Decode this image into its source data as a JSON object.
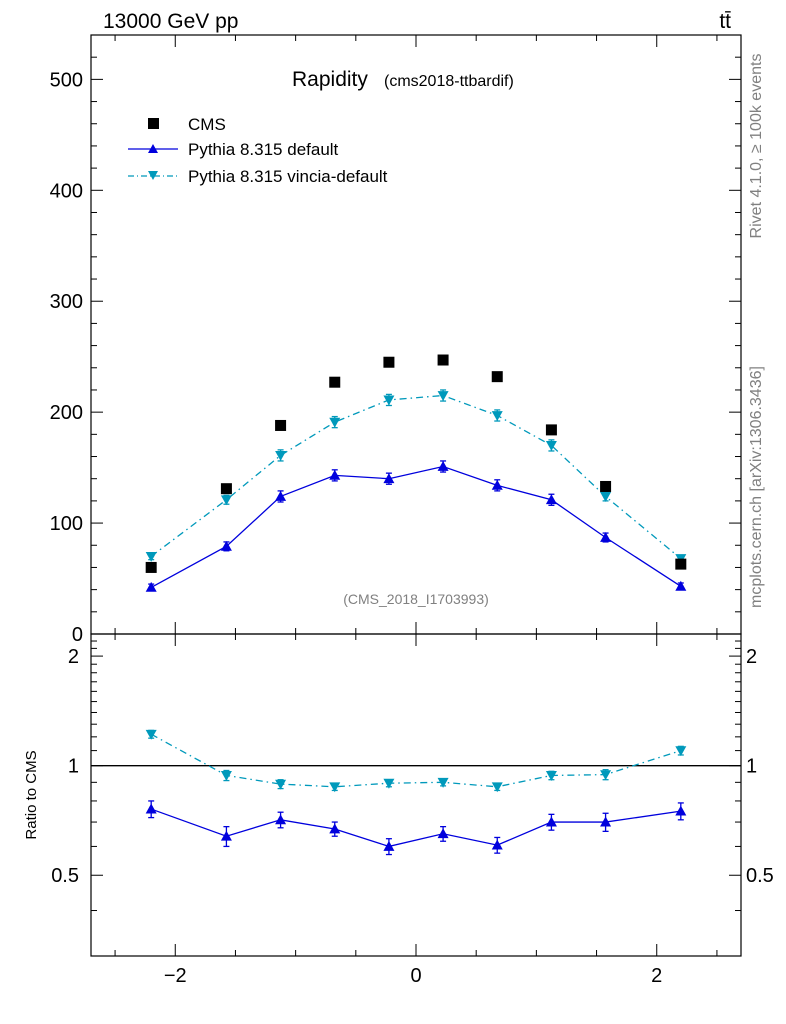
{
  "header": {
    "energy_label": "13000 GeV pp",
    "process_label": "tt̄",
    "side_label_top": "Rivet 4.1.0, ≥ 100k events",
    "side_label_bottom": "mcplots.cern.ch [arXiv:1306.3436]",
    "analysis_id": "(CMS_2018_I1703993)"
  },
  "chart_data": [
    {
      "type": "scatter",
      "title": "Rapidity",
      "subtitle": "(cms2018-ttbardif)",
      "xlabel": "",
      "ylabel": "",
      "xlim": [
        -2.7,
        2.7
      ],
      "ylim": [
        0,
        540
      ],
      "yticks": [
        0,
        100,
        200,
        300,
        400,
        500
      ],
      "ytick_labels": [
        "0",
        "100",
        "200",
        "300",
        "400",
        "500"
      ],
      "legend_position": "top-left",
      "x": [
        -2.2,
        -1.575,
        -1.125,
        -0.675,
        -0.225,
        0.225,
        0.675,
        1.125,
        1.575,
        2.2
      ],
      "series": [
        {
          "name": "CMS",
          "color": "#000000",
          "marker": "square",
          "values": [
            60,
            131,
            188,
            227,
            245,
            247,
            232,
            184,
            133,
            63
          ]
        },
        {
          "name": "Pythia 8.315 default",
          "color": "#0000dd",
          "marker": "triangle-up",
          "line": "solid",
          "values": [
            42,
            79,
            124,
            143,
            140,
            151,
            134,
            121,
            87,
            43
          ],
          "errors": [
            3,
            4,
            5,
            5,
            5,
            5,
            5,
            5,
            4,
            3
          ]
        },
        {
          "name": "Pythia 8.315 vincia-default",
          "color": "#0099bb",
          "marker": "triangle-down",
          "line": "dashdot",
          "values": [
            70,
            121,
            161,
            191,
            211,
            215,
            197,
            170,
            124,
            68
          ],
          "errors": [
            3,
            4,
            5,
            5,
            5,
            5,
            5,
            5,
            4,
            3
          ]
        }
      ]
    },
    {
      "type": "line",
      "title": "",
      "xlabel": "",
      "ylabel": "Ratio to CMS",
      "xlim": [
        -2.7,
        2.7
      ],
      "ylim": [
        0.3,
        2.3
      ],
      "xticks": [
        -2,
        0,
        2
      ],
      "xtick_labels": [
        "−2",
        "0",
        "2"
      ],
      "yticks": [
        0.5,
        1,
        2
      ],
      "ytick_labels": [
        "0.5",
        "1",
        "2"
      ],
      "reference_line": 1,
      "x": [
        -2.2,
        -1.575,
        -1.125,
        -0.675,
        -0.225,
        0.225,
        0.675,
        1.125,
        1.575,
        2.2
      ],
      "series": [
        {
          "name": "Pythia 8.315 default",
          "color": "#0000dd",
          "marker": "triangle-up",
          "line": "solid",
          "values": [
            0.76,
            0.64,
            0.71,
            0.67,
            0.6,
            0.65,
            0.605,
            0.7,
            0.7,
            0.75
          ],
          "errors": [
            0.04,
            0.04,
            0.035,
            0.03,
            0.03,
            0.03,
            0.03,
            0.035,
            0.04,
            0.04
          ]
        },
        {
          "name": "Pythia 8.315 vincia-default",
          "color": "#0099bb",
          "marker": "triangle-down",
          "line": "dashdot",
          "values": [
            1.22,
            0.94,
            0.89,
            0.875,
            0.895,
            0.9,
            0.875,
            0.94,
            0.945,
            1.1
          ],
          "errors": [
            0.03,
            0.03,
            0.025,
            0.02,
            0.02,
            0.02,
            0.02,
            0.025,
            0.03,
            0.03
          ]
        }
      ]
    }
  ]
}
